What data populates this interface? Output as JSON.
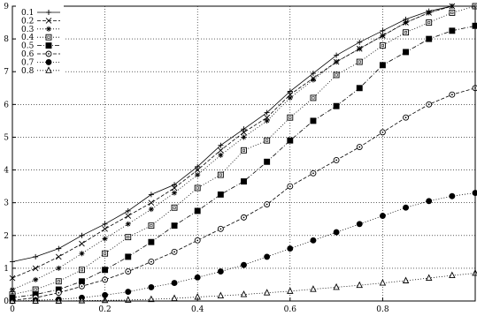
{
  "chart_data": {
    "type": "line",
    "title": "",
    "xlabel": "",
    "ylabel": "",
    "xlim": [
      0,
      1
    ],
    "ylim": [
      0,
      9
    ],
    "xticks": [
      0,
      0.2,
      0.4,
      0.6,
      0.8
    ],
    "xtick_labels": [
      "0",
      "0.2",
      "0.4",
      "0.6",
      "0.8"
    ],
    "yticks": [
      0,
      1,
      2,
      3,
      4,
      5,
      6,
      7,
      8,
      9
    ],
    "ytick_labels": [
      "0",
      "1",
      "2",
      "3",
      "4",
      "5",
      "6",
      "7",
      "8",
      "9"
    ],
    "grid": true,
    "legend_position": "top-left",
    "series": [
      {
        "name": "0.1",
        "marker": "plus",
        "dash": "solid",
        "x": [
          0,
          0.05,
          0.1,
          0.15,
          0.2,
          0.25,
          0.3,
          0.35,
          0.4,
          0.45,
          0.5,
          0.55,
          0.6,
          0.65,
          0.7,
          0.75,
          0.8,
          0.85,
          0.9,
          0.95,
          1.0
        ],
        "y": [
          1.2,
          1.35,
          1.6,
          2.0,
          2.35,
          2.75,
          3.25,
          3.55,
          4.1,
          4.75,
          5.25,
          5.75,
          6.4,
          6.95,
          7.5,
          7.9,
          8.25,
          8.6,
          8.85,
          9.0,
          9.0
        ]
      },
      {
        "name": "0.2",
        "marker": "x",
        "dash": "dashed",
        "x": [
          0,
          0.05,
          0.1,
          0.15,
          0.2,
          0.25,
          0.3,
          0.35,
          0.4,
          0.45,
          0.5,
          0.55,
          0.6,
          0.65,
          0.7,
          0.75,
          0.8,
          0.85,
          0.9,
          0.95,
          1.0
        ],
        "y": [
          0.7,
          1.0,
          1.35,
          1.75,
          2.2,
          2.6,
          3.0,
          3.45,
          4.0,
          4.6,
          5.15,
          5.6,
          6.3,
          6.8,
          7.3,
          7.7,
          8.1,
          8.5,
          8.8,
          9.0,
          9.0
        ]
      },
      {
        "name": "0.3",
        "marker": "star",
        "dash": "dotted",
        "x": [
          0,
          0.05,
          0.1,
          0.15,
          0.2,
          0.25,
          0.3,
          0.35,
          0.4,
          0.45,
          0.5,
          0.55,
          0.6,
          0.65,
          0.7,
          0.75,
          0.8,
          0.85,
          0.9,
          0.95,
          1.0
        ],
        "y": [
          0.35,
          0.65,
          1.0,
          1.45,
          1.9,
          2.35,
          2.8,
          3.3,
          3.85,
          4.45,
          5.0,
          5.5,
          6.2,
          6.75,
          7.3,
          7.7,
          8.1,
          8.5,
          8.8,
          9.0,
          9.0
        ]
      },
      {
        "name": "0.4",
        "marker": "square-open",
        "dash": "dotted",
        "x": [
          0,
          0.05,
          0.1,
          0.15,
          0.2,
          0.25,
          0.3,
          0.35,
          0.4,
          0.45,
          0.5,
          0.55,
          0.6,
          0.65,
          0.7,
          0.75,
          0.8,
          0.85,
          0.9,
          0.95,
          1.0
        ],
        "y": [
          0.2,
          0.35,
          0.6,
          0.95,
          1.45,
          1.95,
          2.3,
          2.85,
          3.45,
          3.85,
          4.6,
          4.9,
          5.6,
          6.2,
          6.9,
          7.3,
          7.8,
          8.2,
          8.5,
          8.8,
          9.0
        ]
      },
      {
        "name": "0.5",
        "marker": "square-filled",
        "dash": "dashdot",
        "x": [
          0,
          0.05,
          0.1,
          0.15,
          0.2,
          0.25,
          0.3,
          0.35,
          0.4,
          0.45,
          0.5,
          0.55,
          0.6,
          0.65,
          0.7,
          0.75,
          0.8,
          0.85,
          0.9,
          0.95,
          1.0
        ],
        "y": [
          0.1,
          0.2,
          0.35,
          0.6,
          0.95,
          1.35,
          1.8,
          2.3,
          2.75,
          3.25,
          3.65,
          4.25,
          4.9,
          5.5,
          5.95,
          6.5,
          7.2,
          7.6,
          8.0,
          8.25,
          8.4
        ]
      },
      {
        "name": "0.6",
        "marker": "circle-dot",
        "dash": "dashed",
        "x": [
          0,
          0.05,
          0.1,
          0.15,
          0.2,
          0.25,
          0.3,
          0.35,
          0.4,
          0.45,
          0.5,
          0.55,
          0.6,
          0.65,
          0.7,
          0.75,
          0.8,
          0.85,
          0.9,
          0.95,
          1.0
        ],
        "y": [
          0.02,
          0.1,
          0.25,
          0.45,
          0.65,
          0.9,
          1.2,
          1.5,
          1.85,
          2.2,
          2.55,
          2.95,
          3.5,
          3.9,
          4.3,
          4.7,
          5.15,
          5.6,
          6.0,
          6.3,
          6.5
        ]
      },
      {
        "name": "0.7",
        "marker": "circle-filled",
        "dash": "dotted",
        "x": [
          0,
          0.05,
          0.1,
          0.15,
          0.2,
          0.25,
          0.3,
          0.35,
          0.4,
          0.45,
          0.5,
          0.55,
          0.6,
          0.65,
          0.7,
          0.75,
          0.8,
          0.85,
          0.9,
          0.95,
          1.0
        ],
        "y": [
          0.0,
          0.02,
          0.05,
          0.1,
          0.18,
          0.28,
          0.42,
          0.55,
          0.72,
          0.9,
          1.1,
          1.35,
          1.6,
          1.85,
          2.1,
          2.35,
          2.6,
          2.85,
          3.05,
          3.2,
          3.3
        ]
      },
      {
        "name": "0.8",
        "marker": "triangle-open",
        "dash": "dotted",
        "x": [
          0,
          0.05,
          0.1,
          0.15,
          0.2,
          0.25,
          0.3,
          0.35,
          0.4,
          0.45,
          0.5,
          0.55,
          0.6,
          0.65,
          0.7,
          0.75,
          0.8,
          0.85,
          0.9,
          0.95,
          1.0
        ],
        "y": [
          0.0,
          0.0,
          0.0,
          0.01,
          0.02,
          0.03,
          0.05,
          0.08,
          0.12,
          0.16,
          0.2,
          0.25,
          0.3,
          0.36,
          0.42,
          0.48,
          0.55,
          0.62,
          0.7,
          0.78,
          0.85
        ]
      }
    ]
  }
}
